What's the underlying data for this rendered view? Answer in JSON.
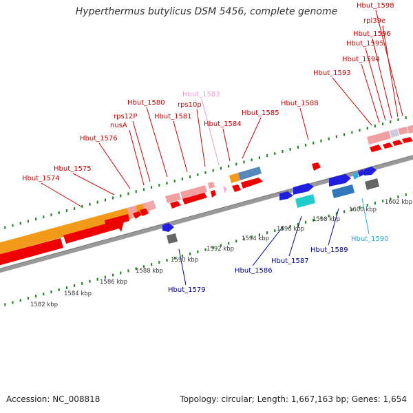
{
  "title": "Hyperthermus butylicus DSM 5456, complete genome",
  "footer": {
    "accession": "Accession: NC_008818",
    "summary": "Topology: circular; Length: 1,667,163 bp; Genes: 1,654"
  },
  "colors": {
    "forward_gene": "#ee0000",
    "reverse_gene": "#0000dd",
    "pseudo": "#cc4444",
    "trna_like": "#00cccc",
    "backbone": "#888888",
    "tick": "#228822",
    "label_forward": "#cc0000",
    "label_reverse": "#000099",
    "label_light_reverse": "#22aadd",
    "label_light_forward": "#ee99cc"
  },
  "scale_labels": [
    "1582 kbp",
    "1584 kbp",
    "1586 kbp",
    "1588 kbp",
    "1590 kbp",
    "1592 kbp",
    "1594 kbp",
    "1596 kbp",
    "1598 kbp",
    "1600 kbp",
    "1602 kbp"
  ],
  "forward_labels": [
    {
      "text": "Hbut_1574",
      "kind": "forward"
    },
    {
      "text": "Hbut_1575",
      "kind": "forward"
    },
    {
      "text": "Hbut_1576",
      "kind": "forward"
    },
    {
      "text": "nusA",
      "kind": "forward"
    },
    {
      "text": "rps12P",
      "kind": "forward"
    },
    {
      "text": "Hbut_1580",
      "kind": "forward"
    },
    {
      "text": "Hbut_1581",
      "kind": "forward"
    },
    {
      "text": "rps10p",
      "kind": "forward"
    },
    {
      "text": "Hbut_1583",
      "kind": "light"
    },
    {
      "text": "Hbut_1584",
      "kind": "forward"
    },
    {
      "text": "Hbut_1585",
      "kind": "forward"
    },
    {
      "text": "Hbut_1588",
      "kind": "forward"
    },
    {
      "text": "Hbut_1593",
      "kind": "forward"
    },
    {
      "text": "Hbut_1594",
      "kind": "forward"
    },
    {
      "text": "Hbut_1595",
      "kind": "forward"
    },
    {
      "text": "Hbut_1596",
      "kind": "forward"
    },
    {
      "text": "rpl39e",
      "kind": "forward"
    },
    {
      "text": "Hbut_1598",
      "kind": "forward"
    }
  ],
  "reverse_labels": [
    {
      "text": "Hbut_1579",
      "kind": "reverse"
    },
    {
      "text": "Hbut_1586",
      "kind": "reverse"
    },
    {
      "text": "Hbut_1587",
      "kind": "reverse"
    },
    {
      "text": "Hbut_1589",
      "kind": "reverse"
    },
    {
      "text": "Hbut_1590",
      "kind": "light"
    }
  ]
}
